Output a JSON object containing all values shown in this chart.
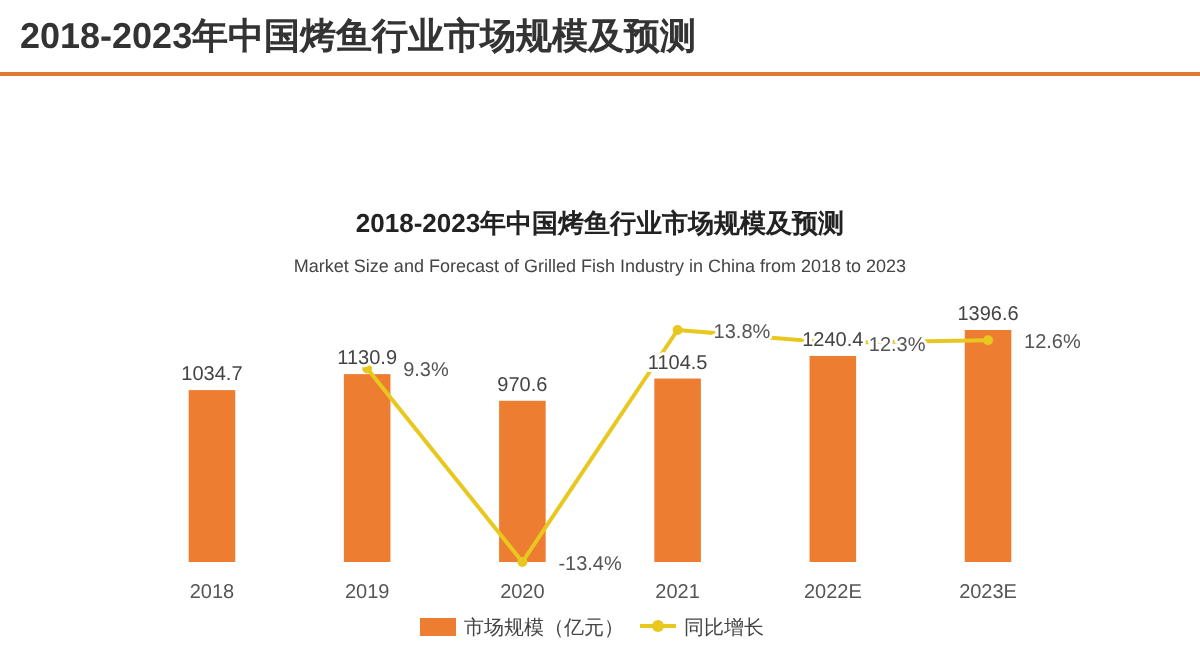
{
  "chart_data": {
    "type": "bar",
    "title": "2018-2023年中国烤鱼行业市场规模及预测",
    "subtitle": "2018-2023年中国烤鱼行业市场规模及预测",
    "annotations": [
      "Market Size and Forecast of Grilled Fish Industry in China from 2018 to 2023"
    ],
    "categories": [
      "2018",
      "2019",
      "2020",
      "2021",
      "2022E",
      "2023E"
    ],
    "series": [
      {
        "name": "市场规模（亿元）",
        "color": "#ed7d31",
        "values": [
          1034.7,
          1130.9,
          970.6,
          1104.5,
          1240.4,
          1396.6
        ],
        "value_labels": [
          "1034.7",
          "1130.9",
          "970.6",
          "1104.5",
          "1240.4",
          "1396.6"
        ]
      },
      {
        "name": "同比增长",
        "type": "line",
        "axis": "y2",
        "color": "#e8c81e",
        "values": [
          null,
          9.3,
          -13.4,
          13.8,
          12.3,
          12.6
        ],
        "value_labels": [
          null,
          "9.3%",
          "-13.4%",
          "13.8%",
          "12.3%",
          "12.6%"
        ]
      }
    ],
    "tick_labels": "x",
    "legend": "bottom",
    "marker": "circle"
  }
}
